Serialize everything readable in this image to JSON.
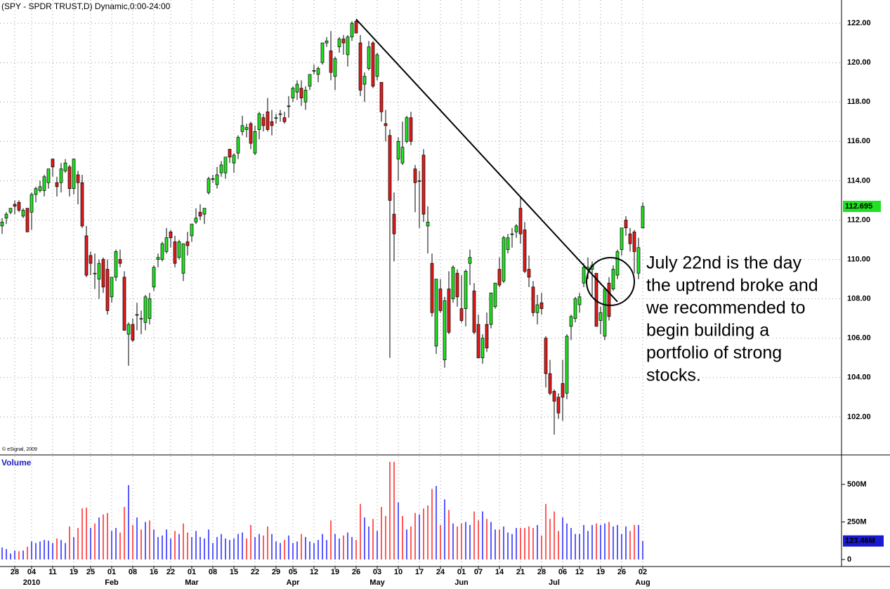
{
  "chart_data": {
    "type": "candlestick",
    "title": "(SPY - SPDR TRUST,D) Dynamic,0:00-24:00",
    "copyright": "© eSignal, 2009",
    "up_color": "#22e022",
    "down_color": "#e01b1b",
    "ylim": [
      100.07,
      123.18
    ],
    "yticks": [
      {
        "value": 102,
        "label": "102.00"
      },
      {
        "value": 104,
        "label": "104.00"
      },
      {
        "value": 106,
        "label": "106.00"
      },
      {
        "value": 108,
        "label": "108.00"
      },
      {
        "value": 110,
        "label": "110.00"
      },
      {
        "value": 112,
        "label": "112.00"
      },
      {
        "value": 114,
        "label": "114.00"
      },
      {
        "value": 116,
        "label": "116.00"
      },
      {
        "value": 118,
        "label": "118.00"
      },
      {
        "value": 120,
        "label": "120.00"
      },
      {
        "value": 122,
        "label": "122.00"
      }
    ],
    "grid": true,
    "last_price": 112.695,
    "ohlc": [
      [
        111.7,
        112.1,
        111.3,
        111.9
      ],
      [
        112.1,
        112.4,
        111.8,
        112.3
      ],
      [
        112.4,
        112.6,
        112.3,
        112.6
      ],
      [
        112.8,
        113.0,
        112.3,
        112.7
      ],
      [
        112.9,
        113.0,
        112.4,
        112.5
      ],
      [
        112.2,
        112.6,
        112.1,
        112.5
      ],
      [
        112.6,
        112.6,
        111.4,
        111.4
      ],
      [
        112.4,
        113.4,
        111.5,
        113.3
      ],
      [
        113.3,
        113.7,
        112.9,
        113.6
      ],
      [
        113.5,
        114.0,
        113.4,
        113.7
      ],
      [
        113.5,
        114.3,
        113.2,
        114.2
      ],
      [
        113.9,
        114.6,
        113.6,
        114.6
      ],
      [
        115.1,
        115.1,
        114.2,
        114.7
      ],
      [
        113.9,
        114.2,
        113.2,
        113.7
      ],
      [
        113.9,
        114.9,
        113.4,
        114.6
      ],
      [
        114.5,
        115.1,
        114.4,
        114.9
      ],
      [
        114.7,
        114.8,
        113.2,
        113.6
      ],
      [
        113.6,
        115.1,
        113.3,
        115.1
      ],
      [
        114.3,
        114.5,
        112.8,
        113.9
      ],
      [
        113.9,
        114.3,
        111.6,
        111.7
      ],
      [
        111.2,
        111.7,
        109.1,
        109.2
      ],
      [
        110.2,
        110.4,
        109.2,
        109.8
      ],
      [
        109.3,
        110.3,
        108.5,
        109.3
      ],
      [
        109.0,
        110.0,
        108.0,
        109.8
      ],
      [
        110.0,
        110.1,
        108.3,
        108.6
      ],
      [
        109.5,
        110.0,
        107.2,
        107.4
      ],
      [
        108.1,
        109.1,
        107.8,
        109.1
      ],
      [
        109.1,
        110.5,
        108.9,
        110.4
      ],
      [
        110.0,
        110.5,
        109.6,
        109.8
      ],
      [
        109.1,
        109.4,
        106.4,
        106.4
      ],
      [
        106.2,
        106.8,
        104.6,
        106.7
      ],
      [
        106.7,
        107.0,
        105.8,
        105.9
      ],
      [
        107.2,
        107.8,
        106.4,
        107.2
      ],
      [
        107.0,
        107.4,
        106.2,
        107.0
      ],
      [
        106.8,
        108.2,
        106.4,
        108.1
      ],
      [
        107.0,
        108.3,
        106.7,
        108.0
      ],
      [
        108.6,
        109.7,
        108.4,
        109.6
      ],
      [
        110.0,
        110.3,
        109.6,
        110.1
      ],
      [
        110.0,
        110.9,
        109.9,
        110.8
      ],
      [
        110.4,
        111.6,
        110.3,
        111.1
      ],
      [
        111.4,
        111.5,
        110.6,
        111.1
      ],
      [
        110.9,
        111.2,
        109.6,
        109.8
      ],
      [
        110.1,
        111.0,
        110.0,
        110.9
      ],
      [
        109.3,
        110.8,
        108.9,
        110.8
      ],
      [
        110.9,
        111.4,
        110.2,
        110.7
      ],
      [
        111.2,
        111.8,
        110.9,
        111.8
      ],
      [
        111.9,
        112.6,
        111.8,
        112.1
      ],
      [
        112.4,
        112.8,
        112.0,
        112.2
      ],
      [
        112.3,
        112.6,
        111.8,
        112.6
      ],
      [
        113.4,
        114.2,
        113.3,
        114.1
      ],
      [
        114.1,
        114.3,
        113.9,
        114.1
      ],
      [
        113.8,
        114.7,
        113.6,
        114.3
      ],
      [
        114.4,
        115.0,
        114.2,
        114.8
      ],
      [
        114.4,
        115.2,
        114.1,
        115.2
      ],
      [
        115.6,
        115.6,
        114.9,
        115.2
      ],
      [
        114.9,
        115.4,
        114.4,
        115.3
      ],
      [
        115.4,
        116.3,
        115.1,
        116.2
      ],
      [
        116.5,
        117.3,
        116.3,
        116.8
      ],
      [
        116.6,
        116.9,
        116.2,
        116.7
      ],
      [
        116.9,
        117.0,
        115.6,
        115.9
      ],
      [
        115.4,
        116.8,
        115.3,
        116.5
      ],
      [
        116.6,
        117.5,
        116.1,
        117.4
      ],
      [
        117.2,
        117.4,
        116.5,
        116.8
      ],
      [
        117.5,
        118.2,
        116.5,
        116.6
      ],
      [
        117.0,
        117.6,
        116.3,
        116.8
      ],
      [
        117.2,
        117.4,
        116.9,
        117.2
      ],
      [
        117.4,
        117.6,
        117.0,
        117.4
      ],
      [
        117.2,
        117.5,
        116.9,
        117.0
      ],
      [
        117.8,
        118.3,
        117.2,
        117.8
      ],
      [
        118.2,
        118.8,
        118.0,
        118.7
      ],
      [
        118.5,
        119.1,
        118.1,
        118.9
      ],
      [
        118.7,
        119.1,
        117.8,
        118.2
      ],
      [
        118.0,
        118.8,
        117.6,
        118.6
      ],
      [
        118.8,
        119.4,
        118.6,
        119.4
      ],
      [
        119.6,
        119.9,
        119.4,
        119.6
      ],
      [
        119.4,
        119.8,
        119.0,
        119.7
      ],
      [
        120.0,
        121.0,
        119.9,
        121.0
      ],
      [
        121.0,
        121.3,
        120.8,
        121.1
      ],
      [
        120.6,
        121.6,
        119.1,
        119.5
      ],
      [
        119.3,
        120.3,
        118.6,
        120.2
      ],
      [
        120.8,
        121.3,
        120.5,
        121.2
      ],
      [
        121.2,
        121.4,
        120.4,
        121.0
      ],
      [
        120.4,
        121.4,
        119.8,
        121.3
      ],
      [
        121.3,
        122.1,
        121.1,
        122.0
      ],
      [
        122.1,
        122.2,
        121.5,
        121.5
      ],
      [
        121.0,
        121.4,
        118.3,
        118.6
      ],
      [
        118.9,
        119.5,
        118.0,
        119.3
      ],
      [
        119.7,
        121.1,
        119.6,
        120.8
      ],
      [
        121.0,
        121.1,
        118.7,
        118.8
      ],
      [
        119.3,
        120.5,
        119.1,
        120.4
      ],
      [
        119.0,
        119.0,
        117.0,
        117.5
      ],
      [
        116.9,
        117.6,
        116.0,
        116.8
      ],
      [
        116.3,
        116.6,
        105.0,
        113.0
      ],
      [
        112.3,
        113.4,
        109.9,
        111.3
      ],
      [
        115.1,
        116.2,
        114.0,
        116.0
      ],
      [
        114.9,
        117.0,
        114.8,
        115.7
      ],
      [
        116.0,
        117.3,
        115.9,
        117.2
      ],
      [
        117.2,
        117.5,
        115.8,
        116.0
      ],
      [
        114.6,
        114.8,
        112.4,
        113.9
      ],
      [
        114.0,
        114.5,
        111.6,
        114.0
      ],
      [
        115.3,
        115.6,
        111.9,
        112.3
      ],
      [
        111.7,
        112.7,
        110.3,
        111.9
      ],
      [
        109.8,
        110.3,
        107.1,
        107.3
      ],
      [
        105.6,
        109.0,
        105.2,
        109.0
      ],
      [
        108.5,
        109.0,
        107.3,
        107.4
      ],
      [
        104.9,
        108.1,
        104.5,
        107.9
      ],
      [
        108.5,
        109.4,
        106.2,
        106.3
      ],
      [
        108.0,
        109.7,
        107.8,
        109.6
      ],
      [
        109.3,
        109.5,
        107.6,
        108.1
      ],
      [
        107.5,
        109.2,
        106.8,
        106.9
      ],
      [
        107.5,
        109.5,
        106.6,
        109.4
      ],
      [
        109.8,
        110.5,
        108.7,
        110.1
      ],
      [
        108.4,
        108.8,
        106.2,
        106.3
      ],
      [
        106.7,
        107.2,
        105.0,
        105.0
      ],
      [
        105.0,
        106.2,
        104.7,
        106.0
      ],
      [
        106.7,
        107.3,
        105.3,
        105.5
      ],
      [
        106.7,
        108.3,
        106.5,
        108.3
      ],
      [
        107.6,
        108.8,
        107.5,
        108.8
      ],
      [
        109.5,
        110.1,
        108.6,
        108.7
      ],
      [
        108.9,
        111.2,
        108.8,
        111.1
      ],
      [
        110.5,
        111.3,
        110.3,
        111.1
      ],
      [
        111.3,
        111.6,
        110.6,
        111.3
      ],
      [
        111.4,
        111.8,
        111.1,
        111.7
      ],
      [
        112.6,
        113.2,
        110.8,
        111.3
      ],
      [
        111.5,
        111.9,
        109.3,
        109.4
      ],
      [
        109.5,
        110.2,
        108.6,
        109.1
      ],
      [
        108.6,
        108.9,
        107.1,
        107.3
      ],
      [
        107.3,
        108.2,
        106.7,
        107.7
      ],
      [
        107.8,
        108.3,
        107.2,
        107.5
      ],
      [
        106.0,
        106.1,
        103.5,
        104.2
      ],
      [
        104.2,
        104.9,
        103.1,
        103.2
      ],
      [
        103.3,
        103.4,
        101.1,
        102.8
      ],
      [
        103.0,
        103.2,
        101.9,
        102.2
      ],
      [
        103.7,
        104.9,
        101.8,
        103.0
      ],
      [
        103.2,
        106.2,
        102.9,
        106.1
      ],
      [
        106.6,
        107.2,
        105.9,
        107.1
      ],
      [
        107.0,
        108.1,
        106.8,
        108.0
      ],
      [
        107.7,
        108.3,
        107.3,
        108.1
      ],
      [
        108.8,
        109.8,
        108.6,
        109.6
      ],
      [
        109.5,
        110.1,
        109.0,
        109.6
      ],
      [
        109.5,
        109.9,
        108.1,
        109.7
      ],
      [
        109.3,
        109.3,
        106.6,
        106.6
      ],
      [
        106.9,
        107.6,
        106.2,
        107.3
      ],
      [
        106.1,
        108.6,
        105.9,
        108.5
      ],
      [
        108.8,
        109.1,
        106.9,
        107.1
      ],
      [
        108.5,
        109.7,
        108.4,
        109.5
      ],
      [
        109.2,
        110.5,
        109.0,
        110.4
      ],
      [
        110.5,
        111.6,
        110.2,
        111.6
      ],
      [
        112.0,
        112.2,
        111.2,
        111.6
      ],
      [
        111.3,
        111.6,
        110.4,
        110.8
      ],
      [
        111.4,
        111.5,
        109.3,
        110.4
      ],
      [
        109.3,
        111.1,
        109.0,
        110.6
      ],
      [
        111.6,
        112.9,
        111.6,
        112.695
      ]
    ],
    "volume": {
      "name": "Volume",
      "up_color": "#0000ff",
      "down_color": "#ff0000",
      "ylim": [
        -46.7,
        687
      ],
      "yticks": [
        {
          "value": 500,
          "label": "500M"
        },
        {
          "value": 250,
          "label": "250M"
        },
        0
      ],
      "last_label": {
        "value": 123.46,
        "label": "123.46M"
      },
      "values": [
        80,
        70,
        40,
        60,
        55,
        60,
        85,
        120,
        110,
        120,
        130,
        125,
        110,
        140,
        130,
        110,
        220,
        150,
        210,
        340,
        345,
        210,
        240,
        280,
        300,
        310,
        190,
        210,
        180,
        350,
        495,
        230,
        280,
        200,
        250,
        260,
        200,
        150,
        160,
        200,
        140,
        190,
        170,
        240,
        180,
        150,
        190,
        150,
        140,
        200,
        110,
        150,
        170,
        140,
        130,
        140,
        170,
        180,
        140,
        230,
        150,
        170,
        160,
        220,
        170,
        120,
        110,
        130,
        160,
        110,
        120,
        170,
        150,
        120,
        110,
        130,
        170,
        130,
        260,
        170,
        140,
        160,
        180,
        150,
        130,
        370,
        280,
        220,
        270,
        190,
        350,
        290,
        650,
        650,
        380,
        290,
        200,
        220,
        310,
        300,
        340,
        360,
        470,
        490,
        230,
        400,
        330,
        240,
        220,
        240,
        250,
        230,
        320,
        260,
        320,
        270,
        250,
        200,
        200,
        220,
        180,
        170,
        210,
        210,
        210,
        220,
        210,
        230,
        160,
        370,
        270,
        320,
        190,
        280,
        240,
        210,
        170,
        170,
        230,
        190,
        230,
        240,
        230,
        240,
        250,
        220,
        230,
        170,
        220,
        190,
        230,
        230,
        123.46
      ]
    },
    "xticks": [
      {
        "value": 3,
        "label": "28"
      },
      {
        "value": 7,
        "label": "04"
      },
      {
        "value": 12,
        "label": "11"
      },
      {
        "value": 17,
        "label": "19"
      },
      {
        "value": 21,
        "label": "25"
      },
      {
        "value": 26,
        "label": "01"
      },
      {
        "value": 31,
        "label": "08"
      },
      {
        "value": 36,
        "label": "16"
      },
      {
        "value": 40,
        "label": "22"
      },
      {
        "value": 45,
        "label": "01"
      },
      {
        "value": 50,
        "label": "08"
      },
      {
        "value": 55,
        "label": "15"
      },
      {
        "value": 60,
        "label": "22"
      },
      {
        "value": 65,
        "label": "29"
      },
      {
        "value": 69,
        "label": "05"
      },
      {
        "value": 74,
        "label": "12"
      },
      {
        "value": 79,
        "label": "19"
      },
      {
        "value": 84,
        "label": "26"
      },
      {
        "value": 89,
        "label": "03"
      },
      {
        "value": 94,
        "label": "10"
      },
      {
        "value": 99,
        "label": "17"
      },
      {
        "value": 104,
        "label": "24"
      },
      {
        "value": 109,
        "label": "01"
      },
      {
        "value": 113,
        "label": "07"
      },
      {
        "value": 118,
        "label": "14"
      },
      {
        "value": 123,
        "label": "21"
      },
      {
        "value": 128,
        "label": "28"
      },
      {
        "value": 133,
        "label": "06"
      },
      {
        "value": 137,
        "label": "12"
      },
      {
        "value": 142,
        "label": "19"
      },
      {
        "value": 147,
        "label": "26"
      },
      {
        "value": 152,
        "label": "02"
      }
    ],
    "month_labels": [
      {
        "value": 7,
        "label": "2010"
      },
      {
        "value": 26,
        "label": "Feb"
      },
      {
        "value": 45,
        "label": "Mar"
      },
      {
        "value": 69,
        "label": "Apr"
      },
      {
        "value": 89,
        "label": "May"
      },
      {
        "value": 109,
        "label": "Jun"
      },
      {
        "value": 131,
        "label": "Jul"
      },
      {
        "value": 152,
        "label": "Aug"
      }
    ],
    "trendline": {
      "from": [
        84,
        122.2
      ],
      "to": [
        146,
        107.85
      ]
    },
    "annotation": [
      "July 22nd is the day",
      "the uptrend broke and",
      "we recommended to",
      "begin building a",
      "portfolio of strong",
      "stocks."
    ]
  }
}
